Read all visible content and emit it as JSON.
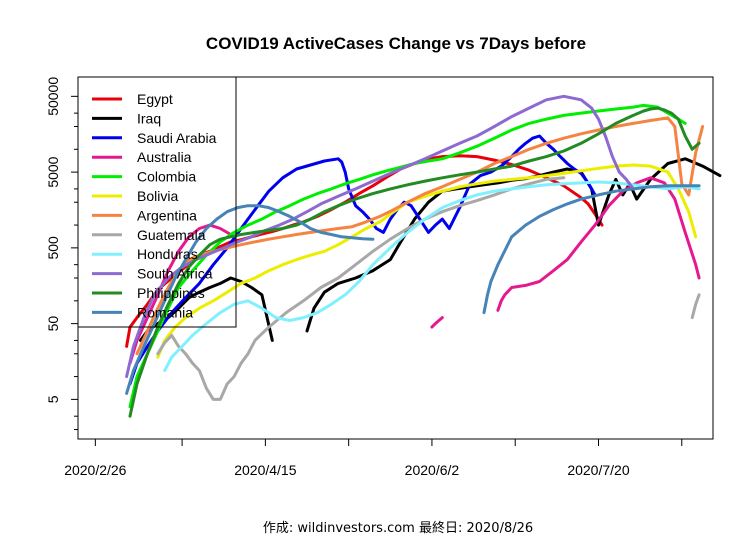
{
  "chart_data": {
    "type": "line",
    "title": "COVID19 ActiveCases Change vs 7Days before",
    "caption": "作成: wildinvestors.com 最終日: 2020/8/26",
    "xlabel": "",
    "ylabel": "",
    "y_scale": "log",
    "ylim": [
      1.5,
      90000
    ],
    "xlim": [
      -5,
      178
    ],
    "x_tick_labels": [
      {
        "day": 0,
        "label": "2020/2/26"
      },
      {
        "day": 49,
        "label": "2020/4/15"
      },
      {
        "day": 97,
        "label": "2020/6/2"
      },
      {
        "day": 145,
        "label": "2020/7/20"
      }
    ],
    "x_minor_ticks": [
      25,
      73,
      121,
      169
    ],
    "y_ticks": [
      {
        "value": 5,
        "label": "5"
      },
      {
        "value": 50,
        "label": "50"
      },
      {
        "value": 500,
        "label": "500"
      },
      {
        "value": 5000,
        "label": "5000"
      },
      {
        "value": 50000,
        "label": "50000"
      }
    ],
    "legend_position": "top-left",
    "series": [
      {
        "name": "Egypt",
        "color": "#e8000b",
        "x": [
          9,
          10,
          12,
          15,
          18,
          22,
          25,
          28,
          30,
          33,
          36,
          39,
          42,
          45,
          48,
          51,
          54,
          57,
          60,
          64,
          68,
          72,
          76,
          80,
          84,
          88,
          92,
          96,
          100,
          105,
          110,
          115,
          120,
          125,
          130,
          135,
          140,
          142,
          144,
          146
        ],
        "y": [
          25,
          45,
          60,
          90,
          140,
          200,
          260,
          330,
          400,
          450,
          520,
          600,
          640,
          700,
          760,
          820,
          900,
          1000,
          1100,
          1300,
          1600,
          2000,
          2600,
          3300,
          4300,
          5500,
          6500,
          7500,
          8000,
          8200,
          8000,
          7200,
          6300,
          5300,
          4200,
          3300,
          2300,
          1900,
          1400,
          1000
        ]
      },
      {
        "name": "Iraq",
        "color": "#000000",
        "x": [
          13,
          15,
          18,
          21,
          24,
          27,
          30,
          33,
          36,
          39,
          42,
          45,
          48,
          51,
          null,
          61,
          63,
          66,
          70,
          75,
          80,
          85,
          88,
          92,
          96,
          100,
          104,
          108,
          112,
          116,
          120,
          124,
          128,
          132,
          136,
          140,
          143,
          145,
          148,
          150,
          152,
          154,
          156,
          160,
          165,
          170,
          175,
          180
        ],
        "y": [
          30,
          40,
          50,
          60,
          80,
          110,
          130,
          150,
          170,
          200,
          180,
          150,
          120,
          30,
          null,
          40,
          80,
          130,
          170,
          200,
          250,
          350,
          600,
          1200,
          2000,
          2800,
          3000,
          3200,
          3400,
          3600,
          3900,
          4100,
          4500,
          5000,
          5500,
          5000,
          3000,
          1000,
          2500,
          4000,
          2500,
          3500,
          2200,
          4000,
          6500,
          7500,
          6000,
          4500
        ]
      },
      {
        "name": "Saudi Arabia",
        "color": "#0000ee",
        "x": [
          10,
          12,
          15,
          18,
          22,
          26,
          30,
          34,
          38,
          42,
          46,
          50,
          54,
          58,
          62,
          66,
          70,
          71,
          72,
          73,
          75,
          77,
          79,
          81,
          83,
          85,
          87,
          89,
          91,
          93,
          96,
          98,
          100,
          102,
          105,
          108,
          111,
          114,
          117,
          120,
          122,
          124,
          126,
          128,
          130,
          132,
          134,
          136,
          138,
          140,
          142,
          144
        ],
        "y": [
          8,
          15,
          25,
          40,
          70,
          110,
          170,
          300,
          500,
          900,
          1600,
          2800,
          4200,
          5500,
          6200,
          7000,
          7500,
          6800,
          5000,
          3000,
          1800,
          1500,
          1200,
          900,
          800,
          1200,
          1600,
          2000,
          1800,
          1300,
          800,
          1000,
          1200,
          900,
          1700,
          3500,
          4500,
          5000,
          6000,
          8000,
          10000,
          12000,
          14000,
          15000,
          12000,
          10000,
          8000,
          6500,
          5500,
          4800,
          3600,
          2500
        ]
      },
      {
        "name": "Australia",
        "color": "#e6188f",
        "x": [
          10,
          12,
          15,
          18,
          21,
          24,
          27,
          30,
          33,
          36,
          39,
          null,
          97,
          98,
          99,
          100,
          null,
          116,
          117,
          118,
          120,
          124,
          128,
          132,
          136,
          140,
          144,
          148,
          152,
          156,
          160,
          164,
          167,
          170,
          173,
          174
        ],
        "y": [
          15,
          30,
          60,
          120,
          250,
          450,
          700,
          900,
          1000,
          900,
          750,
          null,
          45,
          50,
          55,
          60,
          null,
          75,
          100,
          120,
          150,
          160,
          180,
          250,
          350,
          600,
          1000,
          1800,
          2800,
          3600,
          4200,
          3600,
          2200,
          800,
          300,
          200
        ]
      },
      {
        "name": "Colombia",
        "color": "#00ee00",
        "x": [
          10,
          12,
          15,
          18,
          21,
          24,
          28,
          32,
          36,
          40,
          44,
          48,
          52,
          56,
          60,
          64,
          68,
          72,
          76,
          80,
          84,
          88,
          92,
          96,
          100,
          105,
          110,
          115,
          120,
          125,
          130,
          135,
          140,
          145,
          150,
          155,
          158,
          160,
          162,
          165,
          168,
          170
        ],
        "y": [
          4,
          10,
          20,
          40,
          80,
          150,
          250,
          400,
          600,
          800,
          1000,
          1200,
          1500,
          1800,
          2200,
          2600,
          3000,
          3500,
          4000,
          4600,
          5200,
          5800,
          6500,
          7000,
          7500,
          9000,
          11000,
          14000,
          18000,
          22000,
          25000,
          28000,
          30000,
          32000,
          34000,
          36000,
          38000,
          37000,
          36000,
          30000,
          25000,
          22000
        ]
      },
      {
        "name": "Bolivia",
        "color": "#eded00",
        "x": [
          18,
          20,
          23,
          26,
          30,
          34,
          38,
          42,
          46,
          50,
          54,
          58,
          62,
          66,
          70,
          74,
          78,
          82,
          86,
          90,
          95,
          100,
          105,
          110,
          115,
          120,
          125,
          130,
          135,
          140,
          145,
          150,
          155,
          160,
          165,
          168,
          171,
          173
        ],
        "y": [
          18,
          30,
          45,
          60,
          80,
          100,
          130,
          170,
          200,
          250,
          300,
          350,
          400,
          450,
          550,
          700,
          900,
          1100,
          1500,
          2000,
          2400,
          2800,
          3200,
          3500,
          3800,
          4000,
          4200,
          4500,
          4800,
          5200,
          5600,
          6000,
          6200,
          6000,
          5000,
          3000,
          1500,
          700
        ]
      },
      {
        "name": "Argentina",
        "color": "#f58442",
        "x": [
          12,
          15,
          18,
          21,
          24,
          27,
          30,
          34,
          38,
          42,
          46,
          50,
          54,
          58,
          62,
          66,
          70,
          74,
          78,
          82,
          86,
          90,
          95,
          100,
          105,
          110,
          115,
          120,
          125,
          130,
          135,
          140,
          145,
          150,
          155,
          160,
          165,
          167,
          169,
          171,
          173,
          175
        ],
        "y": [
          20,
          40,
          80,
          150,
          250,
          350,
          400,
          450,
          500,
          550,
          600,
          650,
          700,
          750,
          800,
          850,
          900,
          950,
          1100,
          1300,
          1600,
          2000,
          2600,
          3200,
          4000,
          5000,
          6500,
          8000,
          10000,
          12000,
          14000,
          16000,
          18000,
          20000,
          22000,
          24000,
          26000,
          20000,
          3500,
          2500,
          9000,
          20000
        ]
      },
      {
        "name": "Guatemala",
        "color": "#a8a8a8",
        "x": [
          18,
          20,
          22,
          24,
          26,
          28,
          30,
          32,
          34,
          36,
          38,
          40,
          42,
          44,
          46,
          50,
          55,
          60,
          65,
          70,
          75,
          80,
          85,
          90,
          95,
          100,
          105,
          110,
          115,
          120,
          125,
          130,
          135,
          null,
          172,
          173,
          174
        ],
        "y": [
          20,
          28,
          35,
          25,
          20,
          15,
          12,
          7,
          5,
          5,
          8,
          10,
          15,
          20,
          30,
          45,
          70,
          100,
          150,
          200,
          300,
          450,
          650,
          900,
          1200,
          1500,
          1800,
          2100,
          2500,
          3000,
          3500,
          4000,
          4200,
          null,
          60,
          90,
          120
        ]
      },
      {
        "name": "Honduras",
        "color": "#80f0ff",
        "x": [
          20,
          22,
          25,
          28,
          32,
          36,
          40,
          44,
          48,
          52,
          56,
          60,
          64,
          68,
          72,
          76,
          80,
          85,
          90,
          95,
          100,
          105,
          110,
          115,
          120,
          125,
          130,
          135,
          140,
          145,
          150,
          155,
          160,
          165,
          170,
          174
        ],
        "y": [
          12,
          18,
          25,
          35,
          50,
          70,
          90,
          100,
          80,
          60,
          55,
          60,
          70,
          90,
          120,
          180,
          300,
          500,
          800,
          1200,
          1700,
          2100,
          2500,
          2800,
          3000,
          3200,
          3400,
          3500,
          3600,
          3700,
          3600,
          3400,
          3200,
          3000,
          3200,
          3000
        ]
      },
      {
        "name": "South Africa",
        "color": "#8d6acf",
        "x": [
          9,
          11,
          14,
          17,
          21,
          25,
          29,
          33,
          37,
          41,
          45,
          49,
          53,
          57,
          61,
          65,
          70,
          75,
          80,
          85,
          90,
          95,
          100,
          105,
          110,
          115,
          120,
          125,
          130,
          135,
          140,
          143,
          145,
          147,
          149,
          151,
          153,
          155
        ],
        "y": [
          10,
          25,
          60,
          120,
          200,
          280,
          350,
          420,
          500,
          600,
          700,
          850,
          1000,
          1200,
          1500,
          1900,
          2400,
          3000,
          3800,
          4800,
          6000,
          7500,
          9500,
          12000,
          15000,
          20000,
          27000,
          35000,
          45000,
          50000,
          45000,
          35000,
          25000,
          15000,
          8000,
          5000,
          4000,
          3000
        ]
      },
      {
        "name": "Philippines",
        "color": "#228b22",
        "x": [
          10,
          12,
          15,
          18,
          21,
          24,
          27,
          30,
          33,
          36,
          39,
          42,
          46,
          50,
          54,
          58,
          62,
          66,
          70,
          75,
          80,
          85,
          90,
          95,
          100,
          105,
          110,
          115,
          120,
          125,
          130,
          135,
          140,
          145,
          150,
          155,
          158,
          160,
          162,
          164,
          166,
          168,
          170,
          172,
          174
        ],
        "y": [
          3,
          8,
          20,
          45,
          90,
          170,
          280,
          400,
          550,
          650,
          700,
          750,
          800,
          850,
          900,
          1000,
          1200,
          1500,
          1800,
          2200,
          2600,
          3000,
          3400,
          3800,
          4200,
          4600,
          5000,
          5500,
          6000,
          7000,
          8000,
          9500,
          12000,
          16000,
          22000,
          28000,
          32000,
          34000,
          35000,
          33000,
          30000,
          25000,
          15000,
          10000,
          12000
        ]
      },
      {
        "name": "Romania",
        "color": "#4683b7",
        "x": [
          9,
          11,
          14,
          17,
          20,
          23,
          26,
          29,
          32,
          35,
          38,
          41,
          44,
          47,
          50,
          53,
          56,
          59,
          62,
          65,
          68,
          71,
          74,
          77,
          80,
          null,
          112,
          113,
          114,
          116,
          120,
          124,
          128,
          132,
          136,
          140,
          145,
          150,
          155,
          160,
          165,
          170,
          174
        ],
        "y": [
          6,
          12,
          25,
          50,
          100,
          200,
          350,
          600,
          900,
          1200,
          1500,
          1700,
          1800,
          1800,
          1700,
          1500,
          1300,
          1100,
          900,
          800,
          750,
          700,
          680,
          660,
          650,
          null,
          70,
          120,
          180,
          300,
          700,
          1000,
          1300,
          1600,
          1900,
          2200,
          2500,
          2800,
          3000,
          3200,
          3300,
          3300,
          3300
        ]
      }
    ]
  }
}
